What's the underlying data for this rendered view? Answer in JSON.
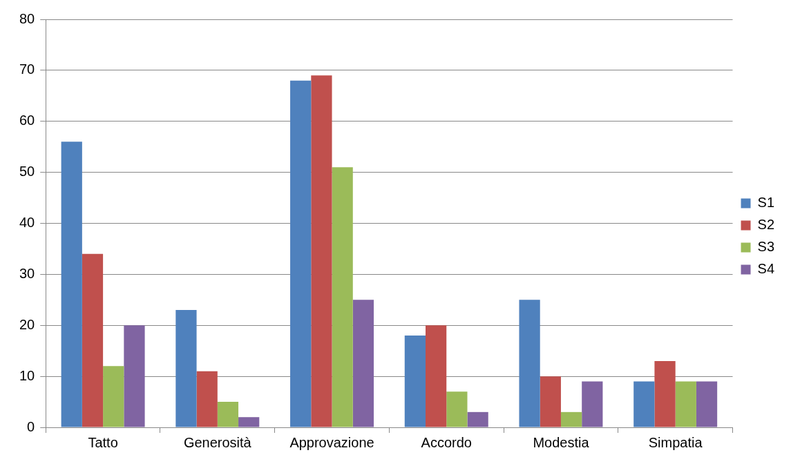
{
  "chart_data": {
    "type": "bar",
    "categories": [
      "Tatto",
      "Generosità",
      "Approvazione",
      "Accordo",
      "Modestia",
      "Simpatia"
    ],
    "series": [
      {
        "name": "S1",
        "color": "#4f81bd",
        "values": [
          56,
          23,
          68,
          18,
          25,
          9
        ]
      },
      {
        "name": "S2",
        "color": "#c0504d",
        "values": [
          34,
          11,
          69,
          20,
          10,
          13
        ]
      },
      {
        "name": "S3",
        "color": "#9bbb59",
        "values": [
          12,
          5,
          51,
          7,
          3,
          9
        ]
      },
      {
        "name": "S4",
        "color": "#8064a2",
        "values": [
          20,
          2,
          25,
          3,
          9,
          9
        ]
      }
    ],
    "ylim": [
      0,
      80
    ],
    "yticks": [
      0,
      10,
      20,
      30,
      40,
      50,
      60,
      70,
      80
    ],
    "grid": "y",
    "legend": "right"
  }
}
